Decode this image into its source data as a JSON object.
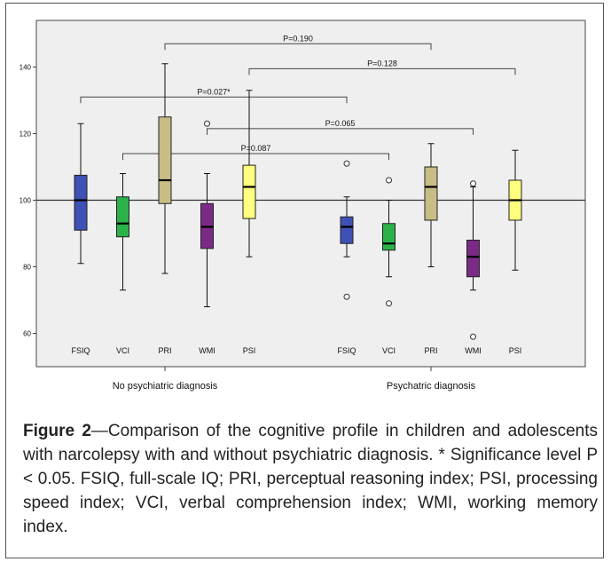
{
  "chart_data": {
    "type": "boxplot",
    "y_ticks": [
      60,
      80,
      100,
      120,
      140
    ],
    "ylim": [
      50,
      154
    ],
    "reference_line": 100,
    "groups": [
      {
        "label": "No psychiatric diagnosis",
        "boxes": [
          {
            "label": "FSIQ",
            "color": "#3f51b5",
            "min": 81,
            "q1": 91,
            "median": 100,
            "q3": 107.5,
            "max": 123,
            "outliers": []
          },
          {
            "label": "VCI",
            "color": "#2bb34a",
            "min": 73,
            "q1": 89,
            "median": 93,
            "q3": 101,
            "max": 108,
            "outliers": []
          },
          {
            "label": "PRI",
            "color": "#c9bd86",
            "min": 78,
            "q1": 99,
            "median": 106,
            "q3": 125,
            "max": 141,
            "outliers": []
          },
          {
            "label": "WMI",
            "color": "#7b2b86",
            "min": 68,
            "q1": 85.5,
            "median": 92,
            "q3": 99,
            "max": 108,
            "outliers": [
              123
            ]
          },
          {
            "label": "PSI",
            "color": "#ffff7f",
            "min": 83,
            "q1": 94.5,
            "median": 104,
            "q3": 110.5,
            "max": 133,
            "outliers": []
          }
        ]
      },
      {
        "label": "Psychatric diagnosis",
        "boxes": [
          {
            "label": "FSIQ",
            "color": "#3f51b5",
            "min": 83,
            "q1": 87,
            "median": 92,
            "q3": 95,
            "max": 101,
            "outliers": [
              111,
              71
            ]
          },
          {
            "label": "VCI",
            "color": "#2bb34a",
            "min": 77,
            "q1": 85,
            "median": 87,
            "q3": 93,
            "max": 100,
            "outliers": [
              106,
              69
            ]
          },
          {
            "label": "PRI",
            "color": "#c9bd86",
            "min": 80,
            "q1": 94,
            "median": 104,
            "q3": 110,
            "max": 117,
            "outliers": []
          },
          {
            "label": "WMI",
            "color": "#7b2b86",
            "min": 73,
            "q1": 77,
            "median": 83,
            "q3": 88,
            "max": 104,
            "outliers": [
              105,
              59
            ]
          },
          {
            "label": "PSI",
            "color": "#ffff7f",
            "min": 79,
            "q1": 94,
            "median": 100,
            "q3": 106,
            "max": 115,
            "outliers": []
          }
        ]
      }
    ],
    "comparisons": [
      {
        "label": "P=0.190",
        "from": [
          0,
          2
        ],
        "to": [
          1,
          2
        ],
        "y": 147
      },
      {
        "label": "P=0.128",
        "from": [
          0,
          4
        ],
        "to": [
          1,
          4
        ],
        "y": 139.5
      },
      {
        "label": "P=0.027*",
        "from": [
          0,
          0
        ],
        "to": [
          1,
          0
        ],
        "y": 131
      },
      {
        "label": "P=0.065",
        "from": [
          0,
          3
        ],
        "to": [
          1,
          3
        ],
        "y": 121.5
      },
      {
        "label": "P=0.087",
        "from": [
          0,
          1
        ],
        "to": [
          1,
          1
        ],
        "y": 114
      }
    ]
  },
  "caption": {
    "figure_label": "Figure 2",
    "text": "—Comparison of the cognitive profile in children and adolescents with narcolepsy with and without psychiatric diagnosis. * Significance level P < 0.05. FSIQ, full-scale IQ; PRI, perceptual reasoning index; PSI, processing speed index; VCI, verbal comprehension index; WMI, working memory index."
  }
}
